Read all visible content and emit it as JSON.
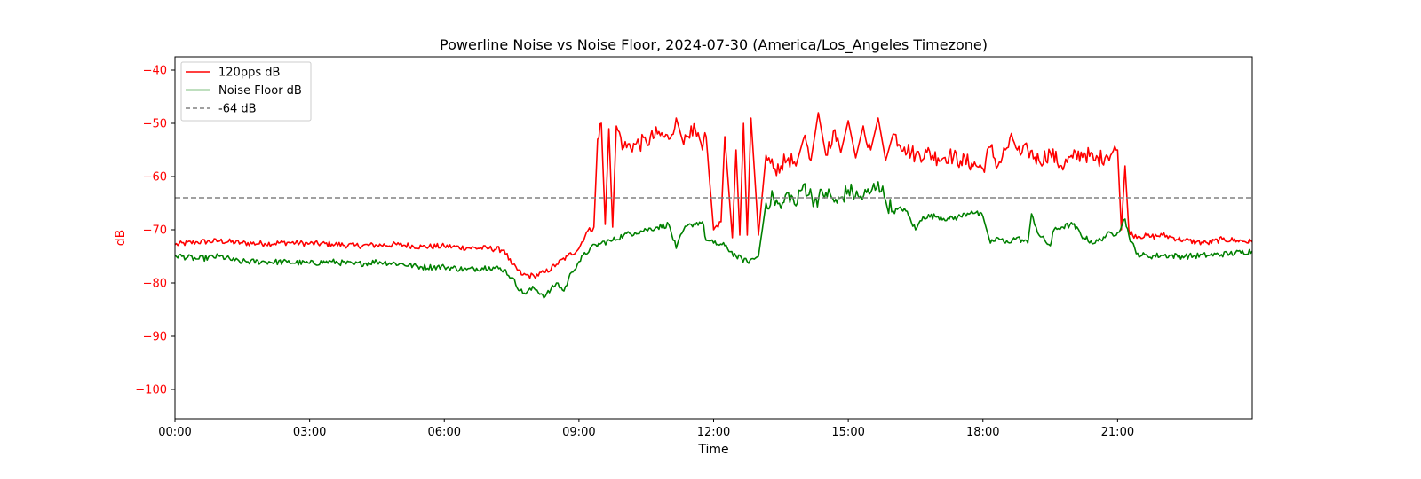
{
  "chart_data": {
    "type": "line",
    "title": "Powerline Noise vs Noise Floor, 2024-07-30 (America/Los_Angeles Timezone)",
    "xlabel": "Time",
    "ylabel": "dB",
    "ylabel_color": "#ff0000",
    "ytick_color": "#ff0000",
    "x_unit": "time of day (HH:MM)",
    "xlim": [
      "00:00",
      "24:00"
    ],
    "ylim": [
      -105.5,
      -37.5
    ],
    "x_ticks": [
      "00:00",
      "03:00",
      "06:00",
      "09:00",
      "12:00",
      "15:00",
      "18:00",
      "21:00"
    ],
    "y_ticks": [
      -40,
      -50,
      -60,
      -70,
      -80,
      -90,
      -100
    ],
    "y_tick_labels": [
      "−40",
      "−50",
      "−60",
      "−70",
      "−80",
      "−90",
      "−100"
    ],
    "grid": false,
    "legend_position": "top-left",
    "series": [
      {
        "name": "120pps dB",
        "color": "#ff0000",
        "style": "solid",
        "points": [
          [
            "00:00",
            -72.8
          ],
          [
            "00:30",
            -72.3
          ],
          [
            "01:00",
            -72.1
          ],
          [
            "01:30",
            -72.5
          ],
          [
            "02:00",
            -72.6
          ],
          [
            "02:30",
            -72.4
          ],
          [
            "03:00",
            -72.6
          ],
          [
            "03:30",
            -72.7
          ],
          [
            "04:00",
            -73.0
          ],
          [
            "04:30",
            -72.9
          ],
          [
            "05:00",
            -72.8
          ],
          [
            "05:30",
            -73.2
          ],
          [
            "06:00",
            -73.1
          ],
          [
            "06:30",
            -73.4
          ],
          [
            "07:00",
            -73.5
          ],
          [
            "07:20",
            -73.8
          ],
          [
            "07:30",
            -76.5
          ],
          [
            "07:45",
            -78.5
          ],
          [
            "08:00",
            -78.7
          ],
          [
            "08:15",
            -78.0
          ],
          [
            "08:30",
            -76.5
          ],
          [
            "08:45",
            -75.0
          ],
          [
            "09:00",
            -73.5
          ],
          [
            "09:10",
            -70.5
          ],
          [
            "09:20",
            -69.5
          ],
          [
            "09:25",
            -53.0
          ],
          [
            "09:30",
            -50.0
          ],
          [
            "09:35",
            -69.0
          ],
          [
            "09:40",
            -51.0
          ],
          [
            "09:45",
            -69.5
          ],
          [
            "09:50",
            -50.5
          ],
          [
            "10:00",
            -54.5
          ],
          [
            "10:15",
            -54.0
          ],
          [
            "10:30",
            -53.5
          ],
          [
            "10:45",
            -52.0
          ],
          [
            "11:00",
            -53.0
          ],
          [
            "11:10",
            -49.0
          ],
          [
            "11:20",
            -54.0
          ],
          [
            "11:30",
            -50.5
          ],
          [
            "11:45",
            -55.0
          ],
          [
            "11:50",
            -52.5
          ],
          [
            "12:00",
            -70.0
          ],
          [
            "12:10",
            -68.5
          ],
          [
            "12:15",
            -52.5
          ],
          [
            "12:25",
            -71.5
          ],
          [
            "12:30",
            -55.0
          ],
          [
            "12:35",
            -71.0
          ],
          [
            "12:40",
            -50.0
          ],
          [
            "12:45",
            -71.0
          ],
          [
            "12:50",
            -49.0
          ],
          [
            "13:00",
            -71.0
          ],
          [
            "13:10",
            -56.0
          ],
          [
            "13:20",
            -58.5
          ],
          [
            "13:30",
            -58.0
          ],
          [
            "13:40",
            -56.5
          ],
          [
            "13:50",
            -58.0
          ],
          [
            "14:00",
            -53.0
          ],
          [
            "14:10",
            -57.0
          ],
          [
            "14:20",
            -48.0
          ],
          [
            "14:30",
            -56.0
          ],
          [
            "14:40",
            -51.5
          ],
          [
            "14:50",
            -55.5
          ],
          [
            "15:00",
            -49.5
          ],
          [
            "15:10",
            -56.5
          ],
          [
            "15:20",
            -50.5
          ],
          [
            "15:30",
            -55.0
          ],
          [
            "15:40",
            -49.0
          ],
          [
            "15:50",
            -57.0
          ],
          [
            "16:00",
            -52.0
          ],
          [
            "16:15",
            -54.5
          ],
          [
            "16:30",
            -56.0
          ],
          [
            "16:45",
            -55.5
          ],
          [
            "17:00",
            -56.5
          ],
          [
            "17:15",
            -56.0
          ],
          [
            "17:30",
            -57.0
          ],
          [
            "17:45",
            -57.5
          ],
          [
            "18:00",
            -58.5
          ],
          [
            "18:10",
            -54.5
          ],
          [
            "18:20",
            -58.0
          ],
          [
            "18:30",
            -55.0
          ],
          [
            "18:40",
            -53.0
          ],
          [
            "18:50",
            -56.0
          ],
          [
            "19:00",
            -55.0
          ],
          [
            "19:15",
            -57.0
          ],
          [
            "19:30",
            -55.5
          ],
          [
            "19:45",
            -58.0
          ],
          [
            "20:00",
            -56.5
          ],
          [
            "20:15",
            -55.5
          ],
          [
            "20:30",
            -57.0
          ],
          [
            "20:45",
            -56.0
          ],
          [
            "21:00",
            -55.0
          ],
          [
            "21:05",
            -70.0
          ],
          [
            "21:10",
            -58.0
          ],
          [
            "21:15",
            -70.0
          ],
          [
            "21:20",
            -71.0
          ],
          [
            "21:45",
            -71.3
          ],
          [
            "22:00",
            -71.0
          ],
          [
            "22:15",
            -71.5
          ],
          [
            "22:30",
            -72.0
          ],
          [
            "22:45",
            -72.3
          ],
          [
            "23:00",
            -72.5
          ],
          [
            "23:20",
            -71.8
          ],
          [
            "23:40",
            -72.0
          ],
          [
            "24:00",
            -72.3
          ]
        ]
      },
      {
        "name": "Noise Floor dB",
        "color": "#008000",
        "style": "solid",
        "points": [
          [
            "00:00",
            -74.8
          ],
          [
            "00:30",
            -75.5
          ],
          [
            "01:00",
            -75.0
          ],
          [
            "01:20",
            -75.8
          ],
          [
            "01:30",
            -76.0
          ],
          [
            "02:00",
            -76.0
          ],
          [
            "02:30",
            -76.1
          ],
          [
            "03:00",
            -76.3
          ],
          [
            "03:30",
            -76.0
          ],
          [
            "04:00",
            -76.5
          ],
          [
            "04:30",
            -76.0
          ],
          [
            "05:00",
            -76.4
          ],
          [
            "05:30",
            -77.0
          ],
          [
            "06:00",
            -77.0
          ],
          [
            "06:30",
            -77.5
          ],
          [
            "07:00",
            -77.0
          ],
          [
            "07:20",
            -77.5
          ],
          [
            "07:30",
            -79.0
          ],
          [
            "07:45",
            -82.0
          ],
          [
            "08:00",
            -81.0
          ],
          [
            "08:15",
            -82.5
          ],
          [
            "08:30",
            -80.0
          ],
          [
            "08:40",
            -81.5
          ],
          [
            "08:50",
            -78.0
          ],
          [
            "09:00",
            -76.0
          ],
          [
            "09:15",
            -73.5
          ],
          [
            "09:30",
            -72.5
          ],
          [
            "09:45",
            -72.0
          ],
          [
            "10:00",
            -71.0
          ],
          [
            "10:15",
            -70.5
          ],
          [
            "10:30",
            -70.0
          ],
          [
            "10:45",
            -69.5
          ],
          [
            "11:00",
            -69.0
          ],
          [
            "11:10",
            -73.5
          ],
          [
            "11:20",
            -70.0
          ],
          [
            "11:30",
            -69.0
          ],
          [
            "11:45",
            -68.5
          ],
          [
            "11:50",
            -72.0
          ],
          [
            "12:00",
            -72.5
          ],
          [
            "12:15",
            -73.0
          ],
          [
            "12:30",
            -75.0
          ],
          [
            "12:45",
            -76.0
          ],
          [
            "13:00",
            -75.0
          ],
          [
            "13:05",
            -70.0
          ],
          [
            "13:10",
            -65.0
          ],
          [
            "13:20",
            -64.0
          ],
          [
            "13:30",
            -66.0
          ],
          [
            "13:40",
            -63.0
          ],
          [
            "13:50",
            -65.5
          ],
          [
            "14:00",
            -61.5
          ],
          [
            "14:15",
            -64.5
          ],
          [
            "14:30",
            -63.0
          ],
          [
            "14:45",
            -65.0
          ],
          [
            "15:00",
            -62.5
          ],
          [
            "15:15",
            -64.0
          ],
          [
            "15:30",
            -63.0
          ],
          [
            "15:40",
            -61.0
          ],
          [
            "15:50",
            -64.5
          ],
          [
            "16:00",
            -66.5
          ],
          [
            "16:15",
            -66.0
          ],
          [
            "16:30",
            -70.0
          ],
          [
            "16:40",
            -67.5
          ],
          [
            "17:00",
            -67.5
          ],
          [
            "17:15",
            -68.0
          ],
          [
            "17:30",
            -67.5
          ],
          [
            "17:45",
            -66.5
          ],
          [
            "18:00",
            -67.5
          ],
          [
            "18:10",
            -72.5
          ],
          [
            "18:20",
            -71.5
          ],
          [
            "18:30",
            -72.5
          ],
          [
            "18:45",
            -71.5
          ],
          [
            "19:00",
            -72.5
          ],
          [
            "19:05",
            -67.0
          ],
          [
            "19:15",
            -71.0
          ],
          [
            "19:30",
            -73.0
          ],
          [
            "19:35",
            -70.0
          ],
          [
            "19:45",
            -69.5
          ],
          [
            "20:00",
            -69.0
          ],
          [
            "20:15",
            -71.5
          ],
          [
            "20:30",
            -72.5
          ],
          [
            "20:45",
            -71.0
          ],
          [
            "21:00",
            -70.5
          ],
          [
            "21:10",
            -68.0
          ],
          [
            "21:15",
            -71.0
          ],
          [
            "21:25",
            -74.5
          ],
          [
            "21:40",
            -75.0
          ],
          [
            "22:00",
            -74.8
          ],
          [
            "22:30",
            -75.0
          ],
          [
            "23:00",
            -74.8
          ],
          [
            "23:30",
            -74.5
          ],
          [
            "24:00",
            -74.0
          ]
        ]
      },
      {
        "name": "-64 dB",
        "color": "#808080",
        "style": "dashed",
        "points": [
          [
            "00:00",
            -64
          ],
          [
            "24:00",
            -64
          ]
        ]
      }
    ]
  }
}
